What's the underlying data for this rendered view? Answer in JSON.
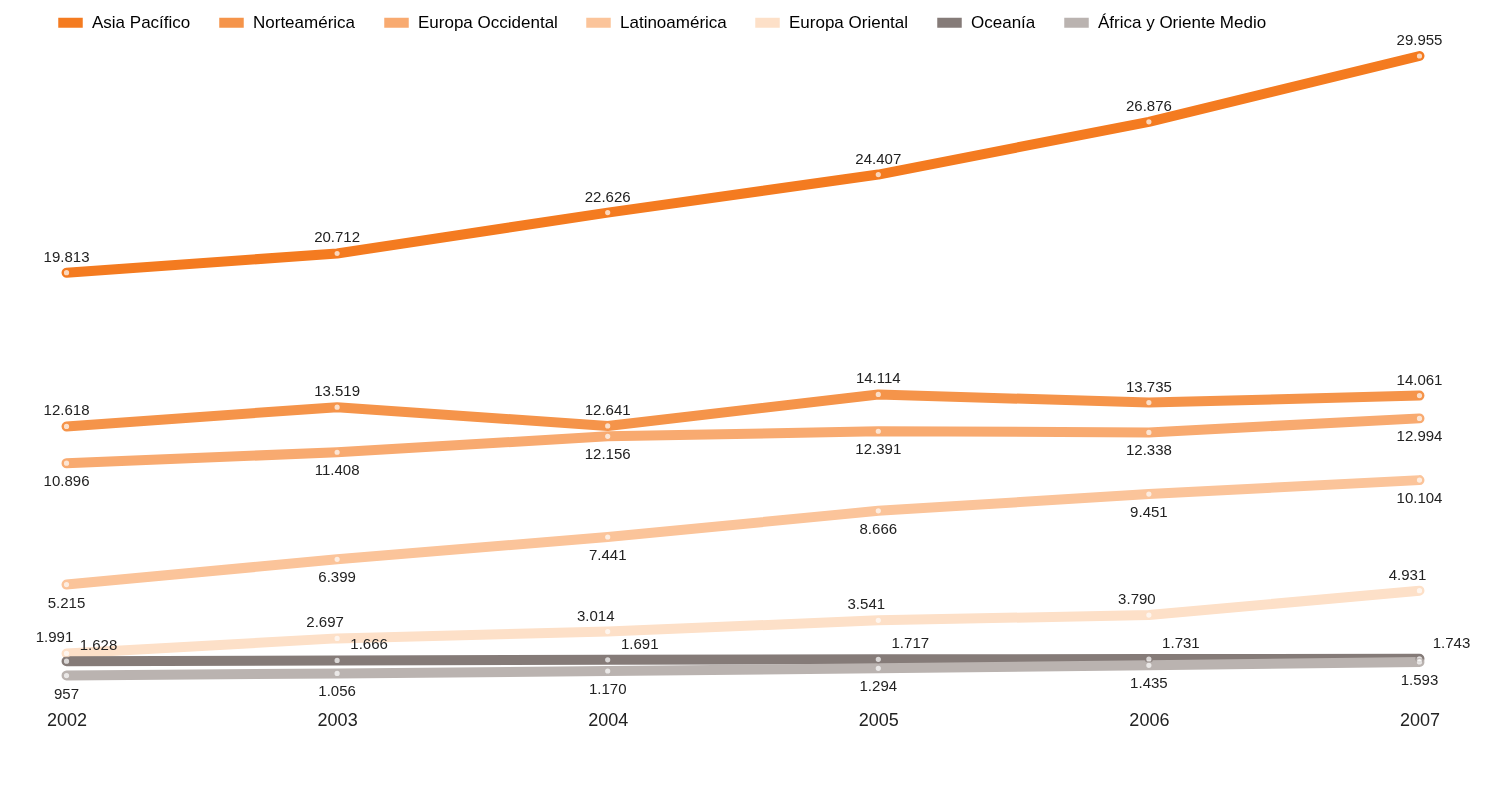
{
  "chart_data": {
    "type": "line",
    "categories": [
      "2002",
      "2003",
      "2004",
      "2005",
      "2006",
      "2007"
    ],
    "series": [
      {
        "name": "Asia Pacífico",
        "color": "#f47b20",
        "values": [
          19813,
          20712,
          22626,
          24407,
          26876,
          29955
        ],
        "value_labels": [
          "19.813",
          "20.712",
          "22.626",
          "24.407",
          "26.876",
          "29.955"
        ]
      },
      {
        "name": "Norteamérica",
        "color": "#f5944a",
        "values": [
          12618,
          13519,
          12641,
          14114,
          13735,
          14061
        ],
        "value_labels": [
          "12.618",
          "13.519",
          "12.641",
          "14.114",
          "13.735",
          "14.061"
        ]
      },
      {
        "name": "Europa Occidental",
        "color": "#f8aa70",
        "values": [
          10896,
          11408,
          12156,
          12391,
          12338,
          12994
        ],
        "value_labels": [
          "10.896",
          "11.408",
          "12.156",
          "12.391",
          "12.338",
          "12.994"
        ]
      },
      {
        "name": "Latinoamérica",
        "color": "#fbc49a",
        "values": [
          5215,
          6399,
          7441,
          8666,
          9451,
          10104
        ],
        "value_labels": [
          "5.215",
          "6.399",
          "7.441",
          "8.666",
          "9.451",
          "10.104"
        ]
      },
      {
        "name": "Europa Oriental",
        "color": "#fde0c8",
        "values": [
          1991,
          2697,
          3014,
          3541,
          3790,
          4931
        ],
        "value_labels": [
          "1.991",
          "2.697",
          "3.014",
          "3.541",
          "3.790",
          "4.931"
        ]
      },
      {
        "name": "Oceanía",
        "color": "#857b78",
        "values": [
          1628,
          1666,
          1691,
          1717,
          1731,
          1743
        ],
        "value_labels": [
          "1.628",
          "1.666",
          "1.691",
          "1.717",
          "1.731",
          "1.743"
        ]
      },
      {
        "name": "África y Oriente Medio",
        "color": "#bab3b0",
        "values": [
          957,
          1056,
          1170,
          1294,
          1435,
          1593
        ],
        "value_labels": [
          "957",
          "1.056",
          "1.170",
          "1.294",
          "1.435",
          "1.593"
        ]
      }
    ],
    "legend": "top",
    "marker": "circle",
    "line_style": "solid",
    "grid": false,
    "tick_labels": "x"
  }
}
